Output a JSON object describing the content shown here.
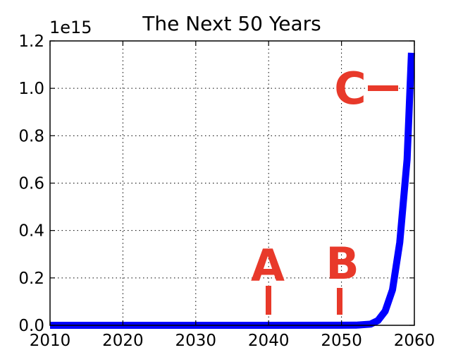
{
  "chart_data": {
    "type": "line",
    "title": "The Next 50 Years",
    "xlabel": "",
    "ylabel": "",
    "y_multiplier_label": "1e15",
    "xlim": [
      2010,
      2060
    ],
    "ylim": [
      0,
      1.2
    ],
    "x_ticks": [
      2010,
      2020,
      2030,
      2040,
      2050,
      2060
    ],
    "x_tick_labels": [
      "2010",
      "2020",
      "2030",
      "2040",
      "2050",
      "2060"
    ],
    "y_ticks": [
      0,
      0.2,
      0.4,
      0.6,
      0.8,
      1.0,
      1.2
    ],
    "y_tick_labels": [
      "0.0",
      "0.2",
      "0.4",
      "0.6",
      "0.8",
      "1.0",
      "1.2"
    ],
    "grid": true,
    "line_color": "#0000ff",
    "series": [
      {
        "x": [
          2010,
          2020,
          2030,
          2040,
          2050,
          2052,
          2054,
          2055,
          2056,
          2057,
          2058,
          2059,
          2059.6
        ],
        "y": [
          0,
          0,
          0,
          0,
          0.0002,
          0.0005,
          0.005,
          0.02,
          0.06,
          0.15,
          0.35,
          0.7,
          1.15
        ]
      }
    ],
    "annotations": [
      {
        "text": "A",
        "x": 2040,
        "color": "#e8392a"
      },
      {
        "text": "B",
        "x": 2050,
        "color": "#e8392a"
      },
      {
        "text": "C",
        "y": 1.0,
        "color": "#e8392a"
      }
    ]
  }
}
